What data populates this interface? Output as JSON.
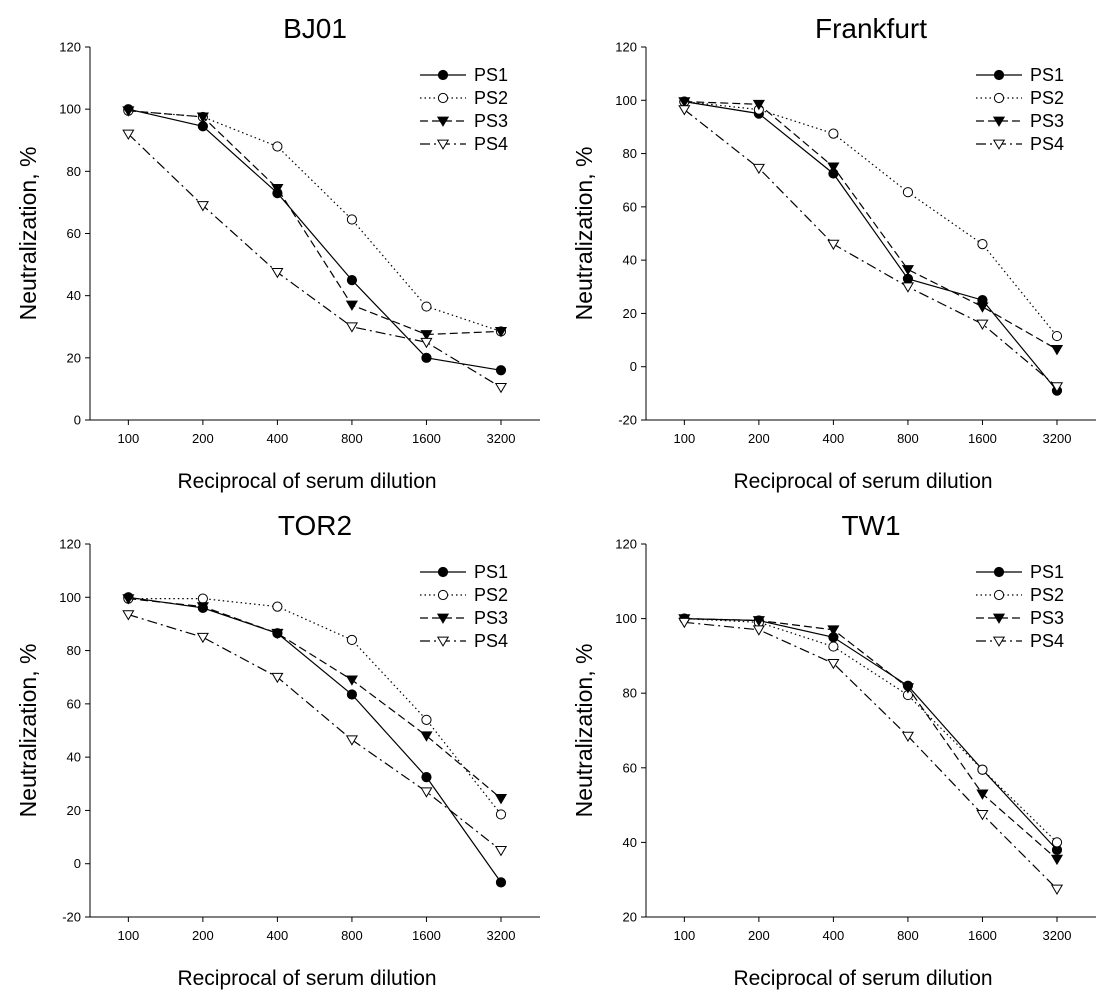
{
  "chart_data": [
    {
      "type": "line",
      "title": "BJ01",
      "xlabel": "Reciprocal of serum dilution",
      "ylabel": "Neutralization, %",
      "x": [
        100,
        200,
        400,
        800,
        1600,
        3200
      ],
      "xscale": "log",
      "xlim": [
        70,
        4600
      ],
      "ylim": [
        0,
        120
      ],
      "yticks": [
        0,
        20,
        40,
        60,
        80,
        100,
        120
      ],
      "grid": false,
      "legend_position": "top-right",
      "series": [
        {
          "name": "PS1",
          "marker": "filled-circle",
          "line": "solid",
          "values": [
            100,
            94.5,
            73,
            45,
            20,
            16
          ]
        },
        {
          "name": "PS2",
          "marker": "open-circle",
          "line": "dotted",
          "values": [
            99.5,
            97.5,
            88,
            64.5,
            36.5,
            28.5
          ]
        },
        {
          "name": "PS3",
          "marker": "filled-triangle-down",
          "line": "dashed",
          "values": [
            99.5,
            97.5,
            74.5,
            37,
            27.5,
            28.5
          ]
        },
        {
          "name": "PS4",
          "marker": "open-triangle-down",
          "line": "dash-dot",
          "values": [
            92,
            69,
            47.5,
            30,
            25,
            10.5
          ]
        }
      ]
    },
    {
      "type": "line",
      "title": "Frankfurt",
      "xlabel": "Reciprocal of serum dilution",
      "ylabel": "Neutralization, %",
      "x": [
        100,
        200,
        400,
        800,
        1600,
        3200
      ],
      "xscale": "log",
      "xlim": [
        70,
        4600
      ],
      "ylim": [
        -20,
        120
      ],
      "yticks": [
        -20,
        0,
        20,
        40,
        60,
        80,
        100,
        120
      ],
      "grid": false,
      "legend_position": "top-right",
      "series": [
        {
          "name": "PS1",
          "marker": "filled-circle",
          "line": "solid",
          "values": [
            99.5,
            95,
            72.5,
            33,
            25,
            -9
          ]
        },
        {
          "name": "PS2",
          "marker": "open-circle",
          "line": "dotted",
          "values": [
            99.5,
            96.5,
            87.5,
            65.5,
            46,
            11.5
          ]
        },
        {
          "name": "PS3",
          "marker": "filled-triangle-down",
          "line": "dashed",
          "values": [
            99.5,
            98.5,
            75,
            36.5,
            22.5,
            6.5
          ]
        },
        {
          "name": "PS4",
          "marker": "open-triangle-down",
          "line": "dash-dot",
          "values": [
            96.5,
            74.5,
            46,
            30,
            16,
            -7.5
          ]
        }
      ]
    },
    {
      "type": "line",
      "title": "TOR2",
      "xlabel": "Reciprocal of serum dilution",
      "ylabel": "Neutralization, %",
      "x": [
        100,
        200,
        400,
        800,
        1600,
        3200
      ],
      "xscale": "log",
      "xlim": [
        70,
        4600
      ],
      "ylim": [
        -20,
        120
      ],
      "yticks": [
        -20,
        0,
        20,
        40,
        60,
        80,
        100,
        120
      ],
      "grid": false,
      "legend_position": "top-right",
      "series": [
        {
          "name": "PS1",
          "marker": "filled-circle",
          "line": "solid",
          "values": [
            100,
            96,
            86.5,
            63.5,
            32.5,
            -7
          ]
        },
        {
          "name": "PS2",
          "marker": "open-circle",
          "line": "dotted",
          "values": [
            99.5,
            99.5,
            96.5,
            84,
            54,
            18.5
          ]
        },
        {
          "name": "PS3",
          "marker": "filled-triangle-down",
          "line": "dashed",
          "values": [
            99.5,
            96.5,
            86.5,
            69,
            48,
            24.5
          ]
        },
        {
          "name": "PS4",
          "marker": "open-triangle-down",
          "line": "dash-dot",
          "values": [
            93.5,
            85,
            70,
            46.5,
            27,
            5
          ]
        }
      ]
    },
    {
      "type": "line",
      "title": "TW1",
      "xlabel": "Reciprocal of serum dilution",
      "ylabel": "Neutralization, %",
      "x": [
        100,
        200,
        400,
        800,
        1600,
        3200
      ],
      "xscale": "log",
      "xlim": [
        70,
        4600
      ],
      "ylim": [
        20,
        120
      ],
      "yticks": [
        20,
        40,
        60,
        80,
        100,
        120
      ],
      "grid": false,
      "legend_position": "top-right",
      "series": [
        {
          "name": "PS1",
          "marker": "filled-circle",
          "line": "solid",
          "values": [
            100,
            99.5,
            95,
            82,
            59.5,
            38
          ]
        },
        {
          "name": "PS2",
          "marker": "open-circle",
          "line": "dotted",
          "values": [
            100,
            99,
            92.5,
            79.5,
            59.5,
            40
          ]
        },
        {
          "name": "PS3",
          "marker": "filled-triangle-down",
          "line": "dashed",
          "values": [
            100,
            99.5,
            97,
            81.5,
            53,
            35.5
          ]
        },
        {
          "name": "PS4",
          "marker": "open-triangle-down",
          "line": "dash-dot",
          "values": [
            99,
            97,
            88,
            68.5,
            47.5,
            27.5
          ]
        }
      ]
    }
  ]
}
